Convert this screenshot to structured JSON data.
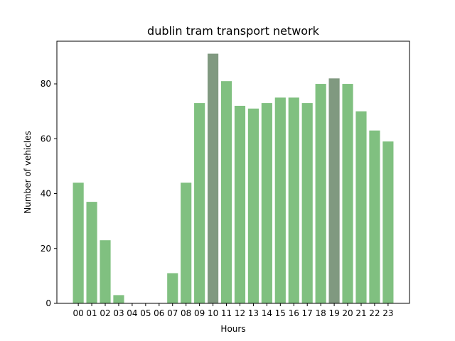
{
  "chart_data": {
    "type": "bar",
    "title": "dublin tram transport network",
    "xlabel": "Hours",
    "ylabel": "Number of vehicles",
    "categories": [
      "00",
      "01",
      "02",
      "03",
      "04",
      "05",
      "06",
      "07",
      "08",
      "09",
      "10",
      "11",
      "12",
      "13",
      "14",
      "15",
      "16",
      "17",
      "18",
      "19",
      "20",
      "21",
      "22",
      "23"
    ],
    "values": [
      44,
      37,
      23,
      3,
      0,
      0,
      0,
      11,
      44,
      73,
      91,
      81,
      72,
      71,
      73,
      75,
      75,
      73,
      80,
      82,
      80,
      70,
      63,
      59
    ],
    "highlighted": [
      "10",
      "19"
    ],
    "ylim": [
      0,
      95.55
    ],
    "yticks": [
      0,
      20,
      40,
      60,
      80
    ],
    "grid": false,
    "colors": {
      "bar": "#80c080",
      "highlight": "#809980"
    }
  }
}
